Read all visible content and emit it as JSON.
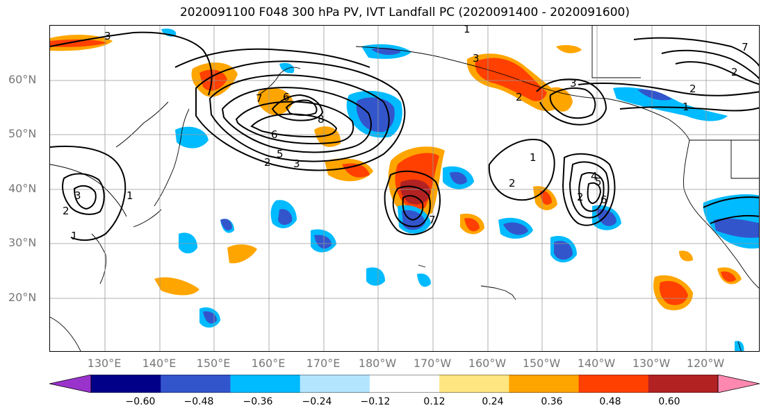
{
  "title": "2020091100 F048 300 hPa PV, IVT Landfall PC (2020091400 - 2020091600)",
  "lat_labels": [
    "60°N",
    "50°N",
    "40°N",
    "30°N",
    "20°N"
  ],
  "lon_labels": [
    "130°E",
    "140°E",
    "150°E",
    "160°E",
    "170°E",
    "180°W",
    "170°W",
    "160°W",
    "150°W",
    "140°W",
    "130°W",
    "120°W"
  ],
  "colorbar": {
    "tick_labels": [
      "−0.60",
      "−0.48",
      "−0.36",
      "−0.24",
      "−0.12",
      "0.12",
      "0.24",
      "0.36",
      "0.48",
      "0.60"
    ],
    "colors": [
      "#9933cc",
      "#000088",
      "#3355cc",
      "#00bbff",
      "#b3e5ff",
      "#ffffff",
      "#ffe680",
      "#ffa500",
      "#ff4000",
      "#b22222",
      "#ff88b0"
    ]
  },
  "contour_labels": [
    "3",
    "3",
    "2",
    "6",
    "5",
    "2",
    "3",
    "8",
    "7",
    "6",
    "1",
    "7",
    "3",
    "2",
    "1",
    "1",
    "2",
    "5",
    "4",
    "6",
    "2",
    "1",
    "2",
    "3",
    "7",
    "2",
    "1"
  ]
}
